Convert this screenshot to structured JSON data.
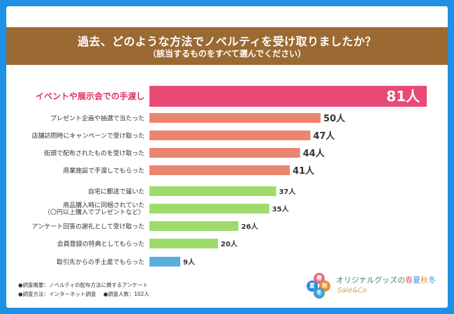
{
  "header": {
    "title": "過去、どのような方法でノベルティを受け取りましたか？",
    "subtitle": "（該当するものをすべて選んでください）"
  },
  "colors": {
    "highlight": "#e84a76",
    "top": "#ec8570",
    "mid": "#9edb6c",
    "low": "#5aaedc"
  },
  "chart_data": {
    "type": "bar",
    "orientation": "horizontal",
    "unit": "人",
    "categories": [
      [
        "イベントや展示会での手渡し"
      ],
      [
        "プレゼント企画や抽選で当たった"
      ],
      [
        "店舗訪問時にキャンペーンで受け取った"
      ],
      [
        "街頭で配布されたものを受け取った"
      ],
      [
        "商業施設で手渡しでもらった"
      ],
      [
        "自宅に郵送で届いた"
      ],
      [
        "商品購入時に同梱されていた",
        "（〇円以上購入でプレゼントなど）"
      ],
      [
        "アンケート回答の謝礼として受け取った"
      ],
      [
        "会員登録の特典としてもらった"
      ],
      [
        "取引先からの手土産でもらった"
      ]
    ],
    "values": [
      81,
      50,
      47,
      44,
      41,
      37,
      35,
      26,
      20,
      9
    ],
    "labels": [
      "81人",
      "50人",
      "47人",
      "44人",
      "41人",
      "37人",
      "35人",
      "26人",
      "20人",
      "9人"
    ],
    "groups": [
      "highlight",
      "top",
      "top",
      "top",
      "top",
      "mid",
      "mid",
      "mid",
      "mid",
      "low"
    ]
  },
  "notes": {
    "line1": "●調査概要：ノベルティの配布方法に関するアンケート",
    "line2_a": "●調査方法：インターネット調査",
    "line2_b": "●調査人数：102人"
  },
  "logo": {
    "circles": [
      "春",
      "夏",
      "秋",
      "冬"
    ],
    "main_a": "オリジナルグッズの",
    "s1": "春",
    "s2": "夏",
    "s3": "秋",
    "s4": "冬",
    "sub": "Sale&Co"
  }
}
